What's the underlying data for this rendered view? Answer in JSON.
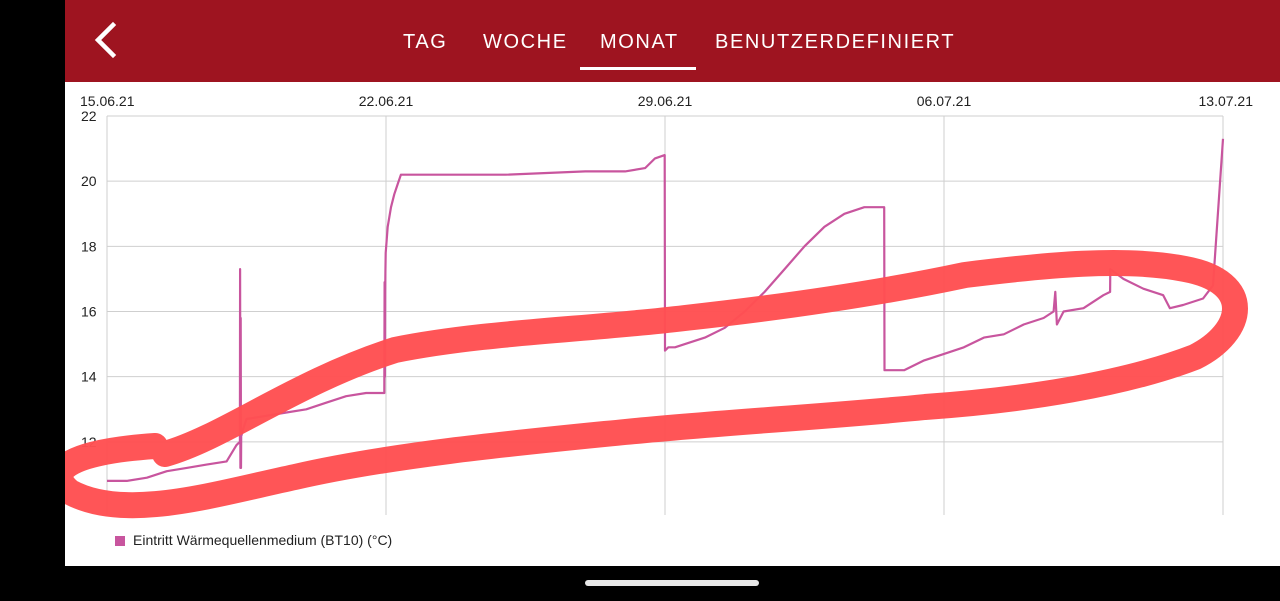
{
  "colors": {
    "header_bg": "#9e1420",
    "series": "#c8559e",
    "grid": "#cfcfcf",
    "annotation": "#ff4f52",
    "system_bar": "#000000"
  },
  "header": {
    "back_icon": "chevron-left-icon",
    "tabs": [
      {
        "label": "TAG",
        "active": false
      },
      {
        "label": "WOCHE",
        "active": false
      },
      {
        "label": "MONAT",
        "active": true
      },
      {
        "label": "BENUTZERDEFINIERT",
        "active": false
      }
    ]
  },
  "chart_data": {
    "type": "line",
    "x_axis_type": "date",
    "x_ticks": [
      "15.06.21",
      "22.06.21",
      "29.06.21",
      "06.07.21",
      "13.07.21"
    ],
    "y_ticks": [
      "22",
      "20",
      "18",
      "16",
      "14",
      "12"
    ],
    "ylim": [
      10,
      22
    ],
    "grid": true,
    "legend_position": "bottom-left",
    "series": [
      {
        "name": "Eintritt Wärmequellenmedium (BT10) (°C)",
        "x": [
          "15.06.21",
          "15.06.21 12:00",
          "16.06.21",
          "16.06.21 12:00",
          "17.06.21",
          "17.06.21 12:00",
          "18.06.21",
          "18.06.21 06:00",
          "18.06.21 08:00",
          "18.06.21 08:10",
          "18.06.21 08:20",
          "18.06.21 08:30",
          "18.06.21 08:40",
          "18.06.21 08:50",
          "18.06.21 09:00",
          "18.06.21 10:00",
          "18.06.21 12:00",
          "19.06.21",
          "19.06.21 12:00",
          "20.06.21",
          "20.06.21 12:00",
          "21.06.21",
          "21.06.21 12:00",
          "21.06.21 23:00",
          "21.06.21 23:10",
          "21.06.21 23:20",
          "21.06.21 23:30",
          "21.06.21 23:40",
          "21.06.21 23:50",
          "22.06.21 01:00",
          "22.06.21 03:00",
          "22.06.21 05:00",
          "22.06.21 07:00",
          "22.06.21 09:00",
          "22.06.21 12:00",
          "22.06.21 18:00",
          "23.06.21",
          "25.06.21",
          "27.06.21",
          "28.06.21",
          "28.06.21 12:00",
          "28.06.21 18:00",
          "28.06.21 23:50",
          "29.06.21",
          "29.06.21 02:00",
          "29.06.21 06:00",
          "29.06.21 12:00",
          "30.06.21",
          "30.06.21 12:00",
          "01.07.21",
          "01.07.21 12:00",
          "02.07.21",
          "02.07.21 12:00",
          "03.07.21",
          "03.07.21 12:00",
          "04.07.21",
          "04.07.21 12:00",
          "04.07.21 12:10",
          "05.07.21",
          "05.07.21 12:00",
          "06.07.21",
          "06.07.21 12:00",
          "07.07.21",
          "07.07.21 12:00",
          "08.07.21",
          "08.07.21 12:00",
          "08.07.21 18:00",
          "08.07.21 19:00",
          "08.07.21 20:00",
          "09.07.21",
          "09.07.21 12:00",
          "10.07.21",
          "10.07.21 04:00",
          "10.07.21 04:10",
          "10.07.21 12:00",
          "11.07.21",
          "11.07.21 12:00",
          "11.07.21 16:00",
          "12.07.21",
          "12.07.21 12:00",
          "12.07.21 18:00",
          "13.07.21"
        ],
        "values": [
          10.8,
          10.8,
          10.9,
          11.1,
          11.2,
          11.3,
          11.4,
          11.9,
          12.0,
          17.3,
          11.2,
          15.8,
          11.2,
          12.2,
          12.2,
          12.4,
          12.7,
          12.8,
          12.9,
          13.0,
          13.2,
          13.4,
          13.5,
          13.5,
          16.9,
          14.0,
          16.6,
          17.2,
          17.8,
          18.6,
          19.2,
          19.6,
          19.9,
          20.2,
          20.2,
          20.2,
          20.2,
          20.2,
          20.3,
          20.3,
          20.4,
          20.7,
          20.8,
          14.8,
          14.9,
          14.9,
          15.0,
          15.2,
          15.5,
          16.0,
          16.6,
          17.3,
          18.0,
          18.6,
          19.0,
          19.2,
          19.2,
          14.2,
          14.2,
          14.5,
          14.7,
          14.9,
          15.2,
          15.3,
          15.6,
          15.8,
          16.0,
          16.6,
          15.6,
          16.0,
          16.1,
          16.5,
          16.6,
          17.3,
          17.0,
          16.7,
          16.5,
          16.1,
          16.2,
          16.4,
          16.8,
          21.3
        ]
      }
    ]
  },
  "legend": {
    "label": "Eintritt Wärmequellenmedium (BT10) (°C)"
  }
}
